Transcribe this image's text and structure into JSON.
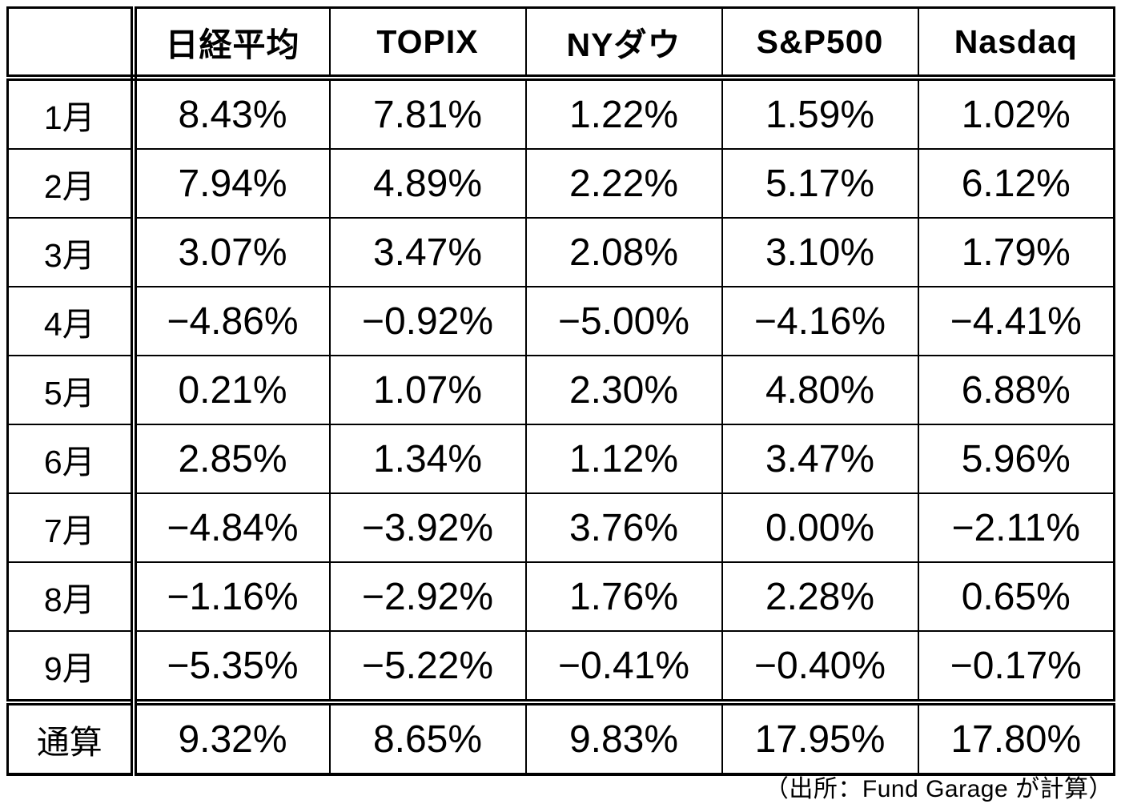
{
  "table": {
    "headers": [
      "",
      "日経平均",
      "TOPIX",
      "NYダウ",
      "S&P500",
      "Nasdaq"
    ],
    "rows": [
      {
        "label": "1月",
        "values": [
          "8.43%",
          "7.81%",
          "1.22%",
          "1.59%",
          "1.02%"
        ]
      },
      {
        "label": "2月",
        "values": [
          "7.94%",
          "4.89%",
          "2.22%",
          "5.17%",
          "6.12%"
        ]
      },
      {
        "label": "3月",
        "values": [
          "3.07%",
          "3.47%",
          "2.08%",
          "3.10%",
          "1.79%"
        ]
      },
      {
        "label": "4月",
        "values": [
          "−4.86%",
          "−0.92%",
          "−5.00%",
          "−4.16%",
          "−4.41%"
        ]
      },
      {
        "label": "5月",
        "values": [
          "0.21%",
          "1.07%",
          "2.30%",
          "4.80%",
          "6.88%"
        ]
      },
      {
        "label": "6月",
        "values": [
          "2.85%",
          "1.34%",
          "1.12%",
          "3.47%",
          "5.96%"
        ]
      },
      {
        "label": "7月",
        "values": [
          "−4.84%",
          "−3.92%",
          "3.76%",
          "0.00%",
          "−2.11%"
        ]
      },
      {
        "label": "8月",
        "values": [
          "−1.16%",
          "−2.92%",
          "1.76%",
          "2.28%",
          "0.65%"
        ]
      },
      {
        "label": "9月",
        "values": [
          "−5.35%",
          "−5.22%",
          "−0.41%",
          "−0.40%",
          "−0.17%"
        ]
      },
      {
        "label": "通算",
        "values": [
          "9.32%",
          "8.65%",
          "9.83%",
          "17.95%",
          "17.80%"
        ]
      }
    ],
    "source_note": "（出所：Fund Garage が計算）"
  },
  "chart_data": {
    "type": "table",
    "title": "",
    "unit": "%",
    "row_labels": [
      "1月",
      "2月",
      "3月",
      "4月",
      "5月",
      "6月",
      "7月",
      "8月",
      "9月",
      "通算"
    ],
    "series": [
      {
        "name": "日経平均",
        "values": [
          8.43,
          7.94,
          3.07,
          -4.86,
          0.21,
          2.85,
          -4.84,
          -1.16,
          -5.35,
          9.32
        ]
      },
      {
        "name": "TOPIX",
        "values": [
          7.81,
          4.89,
          3.47,
          -0.92,
          1.07,
          1.34,
          -3.92,
          -2.92,
          -5.22,
          8.65
        ]
      },
      {
        "name": "NYダウ",
        "values": [
          1.22,
          2.22,
          2.08,
          -5.0,
          2.3,
          1.12,
          3.76,
          1.76,
          -0.41,
          9.83
        ]
      },
      {
        "name": "S&P500",
        "values": [
          1.59,
          5.17,
          3.1,
          -4.16,
          4.8,
          3.47,
          0.0,
          2.28,
          -0.4,
          17.95
        ]
      },
      {
        "name": "Nasdaq",
        "values": [
          1.02,
          6.12,
          1.79,
          -4.41,
          6.88,
          5.96,
          -2.11,
          0.65,
          -0.17,
          17.8
        ]
      }
    ],
    "source": "（出所：Fund Garage が計算）"
  }
}
